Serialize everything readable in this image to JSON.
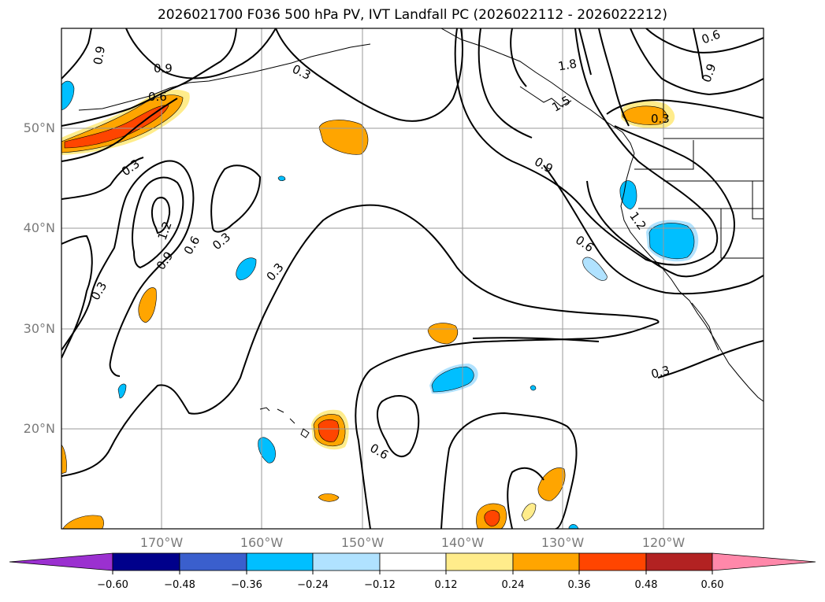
{
  "title": "2026021700 F036 500 hPa PV, IVT Landfall PC (2026022112 - 2026022212)",
  "lat_labels": [
    "50°N",
    "40°N",
    "30°N",
    "20°N"
  ],
  "lon_labels": [
    "170°W",
    "160°W",
    "150°W",
    "140°W",
    "130°W",
    "120°W"
  ],
  "colorbar": {
    "ticks": [
      "−0.60",
      "−0.48",
      "−0.36",
      "−0.24",
      "−0.12",
      "0.12",
      "0.24",
      "0.36",
      "0.48",
      "0.60"
    ],
    "colors": {
      "under": "#9b30d0",
      "n060_n048": "#00008b",
      "n048_n036": "#3a5fcd",
      "n036_n024": "#00bfff",
      "n024_n012": "#b0e2ff",
      "n012_012": "#ffffff",
      "p012_p024": "#ffec8b",
      "p024_p036": "#ffa500",
      "p036_p048": "#ff4500",
      "p048_p060": "#b22222",
      "over": "#ff88aa"
    }
  },
  "contour_labels": [
    "0.9",
    "0.9",
    "0.6",
    "0.3",
    "0.3",
    "1.2",
    "0.9",
    "0.6",
    "0.3",
    "0.3",
    "0.3",
    "1.8",
    "1.5",
    "0.9",
    "1.2",
    "0.6",
    "0.6",
    "0.3",
    "0.9",
    "0.6",
    "0.3"
  ]
}
